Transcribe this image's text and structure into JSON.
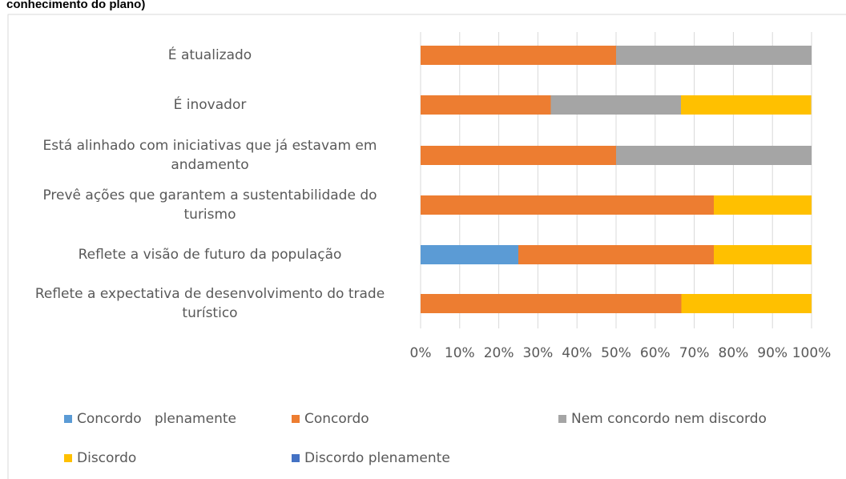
{
  "chart_data": {
    "type": "stacked_barh",
    "title": "conhecimento do plano)",
    "categories": [
      "É atualizado",
      "É inovador",
      "Está alinhado com iniciativas que já estavam em andamento",
      "Prevê ações que garantem a sustentabilidade do turismo",
      "Reflete a visão de futuro da população",
      "Reflete a expectativa de desenvolvimento do trade turístico"
    ],
    "series": [
      {
        "name": "Concordo   plenamente",
        "color": "#5b9bd5",
        "values": [
          0,
          0,
          0,
          0,
          25,
          0
        ]
      },
      {
        "name": "Concordo",
        "color": "#ed7d31",
        "values": [
          50,
          33.3,
          50,
          75,
          50,
          66.7
        ]
      },
      {
        "name": "Nem concordo nem discordo",
        "color": "#a5a5a5",
        "values": [
          50,
          33.3,
          50,
          0,
          0,
          0
        ]
      },
      {
        "name": "Discordo",
        "color": "#ffc000",
        "values": [
          0,
          33.3,
          0,
          25,
          25,
          33.3
        ]
      },
      {
        "name": "Discordo plenamente",
        "color": "#4472c4",
        "values": [
          0,
          0,
          0,
          0,
          0,
          0
        ]
      }
    ],
    "xlim": [
      0,
      100
    ],
    "xticks": [
      {
        "value": 0,
        "label": "0%"
      },
      {
        "value": 10,
        "label": "10%"
      },
      {
        "value": 20,
        "label": "20%"
      },
      {
        "value": 30,
        "label": "30%"
      },
      {
        "value": 40,
        "label": "40%"
      },
      {
        "value": 50,
        "label": "50%"
      },
      {
        "value": 60,
        "label": "60%"
      },
      {
        "value": 70,
        "label": "70%"
      },
      {
        "value": 80,
        "label": "80%"
      },
      {
        "value": 90,
        "label": "90%"
      },
      {
        "value": 100,
        "label": "100%"
      }
    ],
    "grid": true,
    "legend": "bottom"
  }
}
